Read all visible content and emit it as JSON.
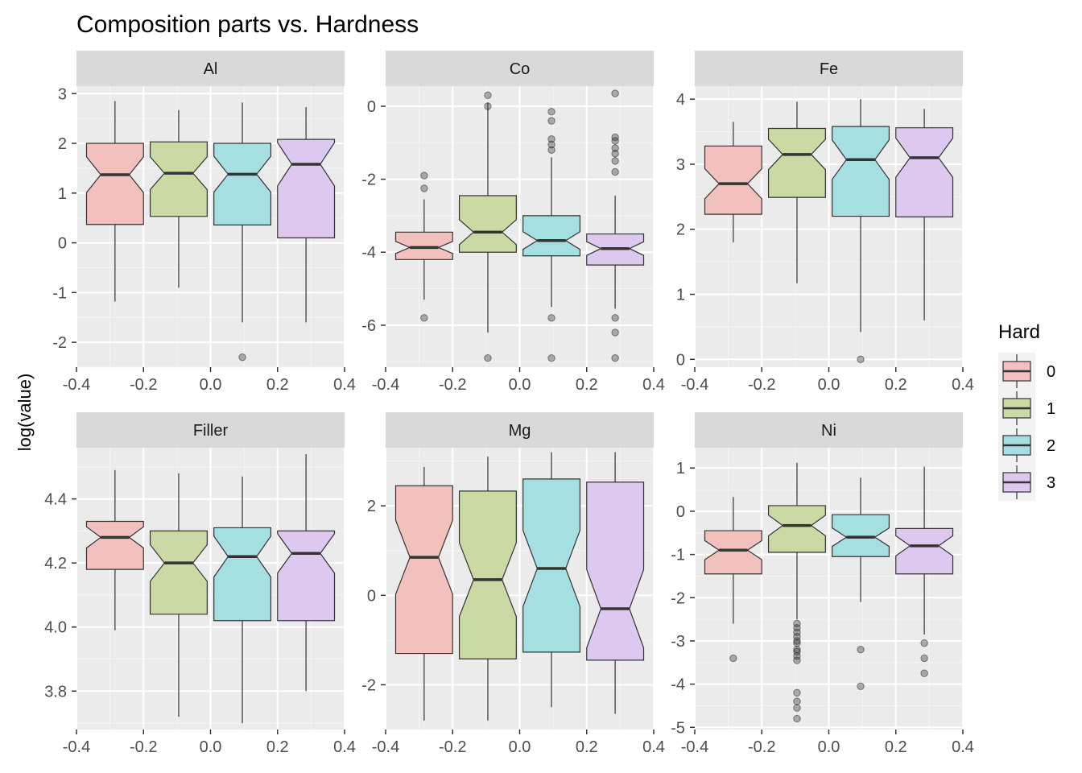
{
  "chart_data": {
    "type": "boxplot",
    "title": "Composition parts vs. Hardness",
    "ylabel": "log(value)",
    "xlabel": "",
    "legend": {
      "title": "Hard",
      "position": "right",
      "entries": [
        "0",
        "1",
        "2",
        "3"
      ]
    },
    "colors": {
      "0": "#f2c0bd",
      "1": "#cbd9a5",
      "2": "#a5dfe2",
      "3": "#ddc8f0"
    },
    "x_ticks": [
      "-0.4",
      "-0.2",
      "0.0",
      "0.2",
      "0.4"
    ],
    "xlim": [
      -0.4,
      0.4
    ],
    "box_x": [
      -0.285,
      -0.095,
      0.095,
      0.285
    ],
    "facets": [
      {
        "name": "Al",
        "ylim": [
          -2.5,
          3.15
        ],
        "y_ticks": [
          3,
          2,
          1,
          0,
          -1,
          -2
        ],
        "boxes": [
          {
            "group": "0",
            "min": -1.18,
            "q1": 0.37,
            "median": 1.37,
            "q3": 2.0,
            "max": 2.85,
            "outliers": []
          },
          {
            "group": "1",
            "min": -0.9,
            "q1": 0.53,
            "median": 1.4,
            "q3": 2.03,
            "max": 2.67,
            "outliers": []
          },
          {
            "group": "2",
            "min": -1.6,
            "q1": 0.36,
            "median": 1.38,
            "q3": 2.0,
            "max": 2.82,
            "outliers": [
              -2.3
            ]
          },
          {
            "group": "3",
            "min": -1.6,
            "q1": 0.1,
            "median": 1.58,
            "q3": 2.08,
            "max": 2.73,
            "outliers": []
          }
        ]
      },
      {
        "name": "Co",
        "ylim": [
          -7.15,
          0.55
        ],
        "y_ticks": [
          0,
          -2,
          -4,
          -6
        ],
        "boxes": [
          {
            "group": "0",
            "min": -5.3,
            "q1": -4.2,
            "median": -3.87,
            "q3": -3.45,
            "max": -2.55,
            "outliers": [
              -1.9,
              -2.25,
              -5.8
            ]
          },
          {
            "group": "1",
            "min": -6.2,
            "q1": -4.0,
            "median": -3.45,
            "q3": -2.45,
            "max": 0.1,
            "outliers": [
              0.3,
              0.0,
              -6.9
            ]
          },
          {
            "group": "2",
            "min": -5.5,
            "q1": -4.1,
            "median": -3.68,
            "q3": -3.0,
            "max": -1.4,
            "outliers": [
              -0.15,
              -0.4,
              -0.9,
              -1.05,
              -1.2,
              -5.8,
              -6.9
            ]
          },
          {
            "group": "3",
            "min": -5.55,
            "q1": -4.35,
            "median": -3.9,
            "q3": -3.5,
            "max": -2.45,
            "outliers": [
              0.35,
              -0.85,
              -0.95,
              -1.15,
              -1.3,
              -1.5,
              -1.8,
              -5.8,
              -6.2,
              -6.9
            ]
          }
        ]
      },
      {
        "name": "Fe",
        "ylim": [
          -0.12,
          4.2
        ],
        "y_ticks": [
          4,
          3,
          2,
          1,
          0
        ],
        "boxes": [
          {
            "group": "0",
            "min": 1.8,
            "q1": 2.23,
            "median": 2.7,
            "q3": 3.28,
            "max": 3.65,
            "outliers": []
          },
          {
            "group": "1",
            "min": 1.17,
            "q1": 2.49,
            "median": 3.15,
            "q3": 3.55,
            "max": 3.96,
            "outliers": []
          },
          {
            "group": "2",
            "min": 0.42,
            "q1": 2.2,
            "median": 3.07,
            "q3": 3.58,
            "max": 4.0,
            "outliers": [
              0.0
            ]
          },
          {
            "group": "3",
            "min": 0.6,
            "q1": 2.19,
            "median": 3.1,
            "q3": 3.56,
            "max": 3.85,
            "outliers": []
          }
        ]
      },
      {
        "name": "Filler",
        "ylim": [
          3.68,
          4.56
        ],
        "y_ticks": [
          4.4,
          4.2,
          4.0,
          3.8
        ],
        "y_tick_labels": [
          "4.4",
          "4.2",
          "4.0",
          "3.8"
        ],
        "boxes": [
          {
            "group": "0",
            "min": 3.99,
            "q1": 4.18,
            "median": 4.28,
            "q3": 4.33,
            "max": 4.49,
            "outliers": []
          },
          {
            "group": "1",
            "min": 3.72,
            "q1": 4.04,
            "median": 4.2,
            "q3": 4.3,
            "max": 4.48,
            "outliers": []
          },
          {
            "group": "2",
            "min": 3.7,
            "q1": 4.02,
            "median": 4.22,
            "q3": 4.31,
            "max": 4.47,
            "outliers": []
          },
          {
            "group": "3",
            "min": 3.8,
            "q1": 4.02,
            "median": 4.23,
            "q3": 4.3,
            "max": 4.54,
            "outliers": []
          }
        ]
      },
      {
        "name": "Mg",
        "ylim": [
          -3.0,
          3.3
        ],
        "y_ticks": [
          2,
          0,
          -2
        ],
        "boxes": [
          {
            "group": "0",
            "min": -2.8,
            "q1": -1.3,
            "median": 0.85,
            "q3": 2.45,
            "max": 2.87,
            "outliers": []
          },
          {
            "group": "1",
            "min": -2.8,
            "q1": -1.42,
            "median": 0.35,
            "q3": 2.33,
            "max": 3.1,
            "outliers": []
          },
          {
            "group": "2",
            "min": -2.5,
            "q1": -1.27,
            "median": 0.6,
            "q3": 2.6,
            "max": 3.2,
            "outliers": []
          },
          {
            "group": "3",
            "min": -2.65,
            "q1": -1.45,
            "median": -0.3,
            "q3": 2.53,
            "max": 3.2,
            "outliers": []
          }
        ]
      },
      {
        "name": "Ni",
        "ylim": [
          -5.05,
          1.47
        ],
        "y_ticks": [
          1,
          0,
          -1,
          -2,
          -3,
          -4,
          -5
        ],
        "boxes": [
          {
            "group": "0",
            "min": -2.6,
            "q1": -1.45,
            "median": -0.9,
            "q3": -0.45,
            "max": 0.33,
            "outliers": [
              -3.4
            ]
          },
          {
            "group": "1",
            "min": -2.5,
            "q1": -0.95,
            "median": -0.33,
            "q3": 0.13,
            "max": 1.12,
            "outliers": [
              -2.6,
              -2.7,
              -2.8,
              -2.9,
              -3.0,
              -3.05,
              -3.2,
              -3.25,
              -3.35,
              -3.45,
              -4.2,
              -4.4,
              -4.55,
              -4.8
            ]
          },
          {
            "group": "2",
            "min": -2.1,
            "q1": -1.05,
            "median": -0.6,
            "q3": -0.08,
            "max": 0.78,
            "outliers": [
              -3.2,
              -4.05
            ]
          },
          {
            "group": "3",
            "min": -2.85,
            "q1": -1.45,
            "median": -0.8,
            "q3": -0.4,
            "max": 1.03,
            "outliers": [
              -3.05,
              -3.4,
              -3.75
            ]
          }
        ]
      }
    ]
  }
}
